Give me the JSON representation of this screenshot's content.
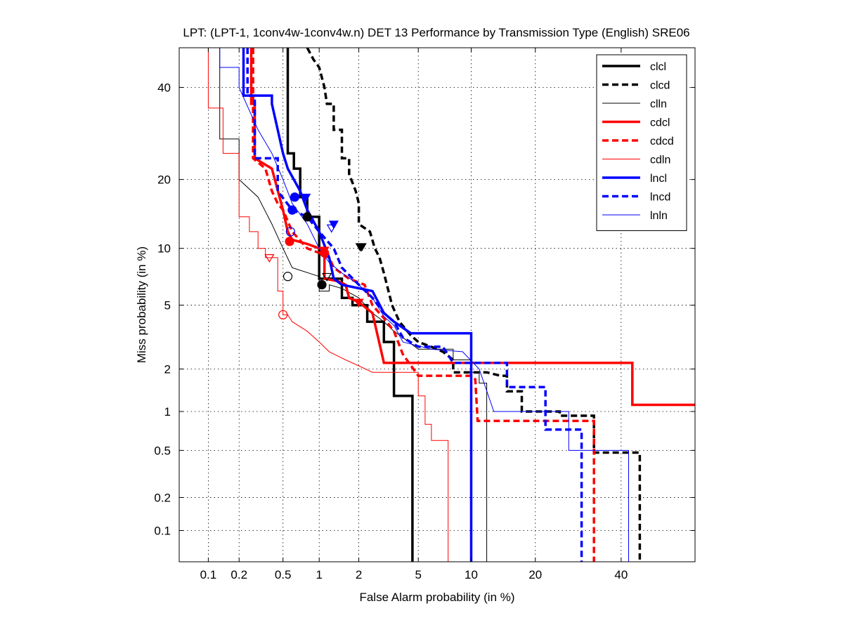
{
  "chart_data": {
    "type": "line",
    "title": "LPT: (LPT-1, 1conv4w-1conv4w.n) DET 13 Performance by Transmission Type (English) SRE06",
    "xlabel": "False Alarm probability (in %)",
    "ylabel": "Miss probability (in %)",
    "x_scale": "probit",
    "y_scale": "probit",
    "xlim": [
      0.05,
      60
    ],
    "ylim": [
      0.05,
      50
    ],
    "x_ticks": [
      0.1,
      0.2,
      0.5,
      1,
      2,
      5,
      10,
      20,
      40
    ],
    "x_tick_labels": [
      "0.1",
      "0.2",
      "0.5",
      "1",
      "2",
      "5",
      "10",
      "20",
      "40"
    ],
    "y_ticks": [
      0.1,
      0.2,
      0.5,
      1,
      2,
      5,
      10,
      20,
      40
    ],
    "y_tick_labels": [
      "0.1",
      "0.2",
      "0.5",
      "1",
      "2",
      "5",
      "10",
      "20",
      "40"
    ],
    "grid": true,
    "legend_position": "top-right",
    "series": [
      {
        "name": "clcl",
        "color": "#000000",
        "style": "solid",
        "weight": "thick",
        "points": [
          [
            0.55,
            50
          ],
          [
            0.55,
            25
          ],
          [
            0.62,
            25
          ],
          [
            0.62,
            22
          ],
          [
            0.7,
            22
          ],
          [
            0.7,
            17
          ],
          [
            0.8,
            17
          ],
          [
            0.8,
            14
          ],
          [
            1,
            14
          ],
          [
            1,
            7
          ],
          [
            1.5,
            7
          ],
          [
            1.5,
            5.5
          ],
          [
            1.8,
            5.5
          ],
          [
            1.8,
            5
          ],
          [
            2.3,
            5
          ],
          [
            2.3,
            4
          ],
          [
            3,
            4
          ],
          [
            3,
            3
          ],
          [
            3.5,
            3
          ],
          [
            3.5,
            1.3
          ],
          [
            4.6,
            1.3
          ],
          [
            4.6,
            0.05
          ]
        ],
        "markers": [
          {
            "x": 0.8,
            "y": 14,
            "shape": "circle"
          },
          {
            "x": 1.05,
            "y": 6.5,
            "shape": "circle"
          },
          {
            "x": 2.05,
            "y": 10.2,
            "shape": "triangle-down"
          }
        ]
      },
      {
        "name": "clcd",
        "color": "#000000",
        "style": "dashed",
        "weight": "thick",
        "points": [
          [
            0.8,
            50
          ],
          [
            0.9,
            47
          ],
          [
            1.0,
            45
          ],
          [
            1.1,
            40
          ],
          [
            1.15,
            36
          ],
          [
            1.3,
            36
          ],
          [
            1.3,
            30
          ],
          [
            1.5,
            30
          ],
          [
            1.5,
            24
          ],
          [
            1.7,
            24
          ],
          [
            1.7,
            21
          ],
          [
            1.9,
            18
          ],
          [
            2,
            16
          ],
          [
            2,
            13
          ],
          [
            2.4,
            12
          ],
          [
            2.6,
            10
          ],
          [
            2.8,
            9
          ],
          [
            3,
            7.5
          ],
          [
            3.4,
            5
          ],
          [
            3.8,
            4
          ],
          [
            4.5,
            3.3
          ],
          [
            5,
            3
          ],
          [
            6,
            2.8
          ],
          [
            7,
            2.6
          ],
          [
            8,
            2.3
          ],
          [
            8,
            1.9
          ],
          [
            12,
            1.9
          ],
          [
            14,
            1.8
          ],
          [
            15,
            1.8
          ],
          [
            15,
            1.4
          ],
          [
            17.5,
            1.4
          ],
          [
            17.5,
            1.0
          ],
          [
            25,
            1.0
          ],
          [
            25,
            0.93
          ],
          [
            33,
            0.93
          ],
          [
            33,
            0.48
          ],
          [
            45,
            0.48
          ],
          [
            45,
            0.05
          ]
        ],
        "markers": [
          {
            "x": 2.1,
            "y": 10.2,
            "shape": "triangle-down"
          }
        ]
      },
      {
        "name": "clln",
        "color": "#000000",
        "style": "solid",
        "weight": "thin",
        "points": [
          [
            0.13,
            50
          ],
          [
            0.13,
            28
          ],
          [
            0.2,
            28
          ],
          [
            0.2,
            20
          ],
          [
            0.3,
            17
          ],
          [
            0.4,
            13
          ],
          [
            0.5,
            10
          ],
          [
            0.6,
            8
          ],
          [
            1,
            7.2
          ],
          [
            1,
            6
          ],
          [
            1.2,
            6
          ],
          [
            1.2,
            6.5
          ],
          [
            1.5,
            6.2
          ],
          [
            2,
            5.5
          ],
          [
            2.5,
            4.5
          ],
          [
            3,
            4
          ],
          [
            3.5,
            3.5
          ],
          [
            4,
            3.2
          ],
          [
            5,
            2.7
          ],
          [
            8,
            2.7
          ],
          [
            8,
            2.3
          ],
          [
            10,
            2.3
          ],
          [
            10,
            1.9
          ],
          [
            11,
            1.9
          ],
          [
            11,
            1.6
          ],
          [
            12,
            1.6
          ],
          [
            12,
            0.05
          ]
        ],
        "markers": [
          {
            "x": 0.55,
            "y": 7.2,
            "shape": "circle"
          },
          {
            "x": 1.15,
            "y": 7.2,
            "shape": "triangle-down"
          }
        ]
      },
      {
        "name": "cdcl",
        "color": "#ff0000",
        "style": "solid",
        "weight": "thick",
        "points": [
          [
            0.26,
            50
          ],
          [
            0.26,
            36
          ],
          [
            0.28,
            36
          ],
          [
            0.28,
            24
          ],
          [
            0.4,
            22
          ],
          [
            0.5,
            15
          ],
          [
            0.55,
            12
          ],
          [
            0.6,
            11
          ],
          [
            0.8,
            10.5
          ],
          [
            1,
            10
          ],
          [
            1.1,
            10
          ],
          [
            1.1,
            7
          ],
          [
            1.4,
            6.8
          ],
          [
            1.6,
            6.5
          ],
          [
            1.7,
            5.5
          ],
          [
            2,
            5.2
          ],
          [
            2.5,
            4.5
          ],
          [
            3,
            2.2
          ],
          [
            4,
            2.2
          ],
          [
            43,
            2.2
          ],
          [
            43,
            1.12
          ],
          [
            60,
            1.12
          ]
        ],
        "markers": [
          {
            "x": 0.57,
            "y": 10.8,
            "shape": "circle"
          },
          {
            "x": 1.1,
            "y": 9.8,
            "shape": "triangle-down"
          }
        ]
      },
      {
        "name": "cdcd",
        "color": "#ff0000",
        "style": "dashed",
        "weight": "thick",
        "points": [
          [
            0.27,
            50
          ],
          [
            0.27,
            24
          ],
          [
            0.35,
            22
          ],
          [
            0.4,
            18
          ],
          [
            0.45,
            16
          ],
          [
            0.5,
            15
          ],
          [
            0.6,
            12
          ],
          [
            0.8,
            10
          ],
          [
            1.0,
            9.5
          ],
          [
            1.2,
            9
          ],
          [
            1.3,
            8
          ],
          [
            1.7,
            7
          ],
          [
            2.2,
            6.5
          ],
          [
            2.5,
            5
          ],
          [
            3,
            4.2
          ],
          [
            3.5,
            3.5
          ],
          [
            4,
            2.5
          ],
          [
            5,
            1.8
          ],
          [
            6,
            1.8
          ],
          [
            10,
            1.8
          ],
          [
            10.5,
            1.7
          ],
          [
            10.8,
            0.85
          ],
          [
            30,
            0.85
          ],
          [
            33,
            0.85
          ],
          [
            33,
            0.05
          ]
        ],
        "markers": [
          {
            "x": 1.1,
            "y": 9.5,
            "shape": "circle"
          },
          {
            "x": 2.0,
            "y": 5.2,
            "shape": "triangle-down"
          }
        ]
      },
      {
        "name": "cdln",
        "color": "#ff0000",
        "style": "solid",
        "weight": "thin",
        "points": [
          [
            0.1,
            50
          ],
          [
            0.1,
            35
          ],
          [
            0.14,
            35
          ],
          [
            0.14,
            25
          ],
          [
            0.2,
            25
          ],
          [
            0.2,
            14
          ],
          [
            0.25,
            14
          ],
          [
            0.25,
            12
          ],
          [
            0.3,
            12
          ],
          [
            0.3,
            10
          ],
          [
            0.35,
            10
          ],
          [
            0.35,
            9
          ],
          [
            0.45,
            9
          ],
          [
            0.45,
            6
          ],
          [
            0.5,
            6
          ],
          [
            0.5,
            4.4
          ],
          [
            0.55,
            4.4
          ],
          [
            0.6,
            4
          ],
          [
            0.8,
            3.5
          ],
          [
            1.0,
            3
          ],
          [
            1.2,
            2.6
          ],
          [
            1.6,
            2.3
          ],
          [
            2,
            2.1
          ],
          [
            2.5,
            1.9
          ],
          [
            5,
            1.9
          ],
          [
            5,
            1.3
          ],
          [
            5.5,
            1.3
          ],
          [
            5.5,
            0.8
          ],
          [
            6,
            0.8
          ],
          [
            6,
            0.6
          ],
          [
            7.5,
            0.6
          ],
          [
            7.5,
            0.05
          ]
        ],
        "markers": [
          {
            "x": 0.5,
            "y": 4.4,
            "shape": "circle"
          },
          {
            "x": 0.38,
            "y": 9.0,
            "shape": "triangle-down"
          }
        ]
      },
      {
        "name": "lncl",
        "color": "#0000ff",
        "style": "solid",
        "weight": "thick",
        "points": [
          [
            0.22,
            50
          ],
          [
            0.22,
            38
          ],
          [
            0.4,
            38
          ],
          [
            0.4,
            36
          ],
          [
            0.45,
            30
          ],
          [
            0.5,
            25
          ],
          [
            0.55,
            22
          ],
          [
            0.7,
            18
          ],
          [
            0.8,
            15
          ],
          [
            1,
            12
          ],
          [
            1.2,
            9
          ],
          [
            1.3,
            7
          ],
          [
            1.5,
            6.5
          ],
          [
            2.5,
            6
          ],
          [
            3,
            4.5
          ],
          [
            3.5,
            4
          ],
          [
            4.5,
            3.4
          ],
          [
            10,
            3.4
          ],
          [
            10,
            0.05
          ]
        ],
        "markers": [
          {
            "x": 0.63,
            "y": 17,
            "shape": "circle"
          },
          {
            "x": 0.78,
            "y": 17,
            "shape": "triangle-down"
          }
        ]
      },
      {
        "name": "lncd",
        "color": "#0000ff",
        "style": "dashed",
        "weight": "thick",
        "points": [
          [
            0.24,
            50
          ],
          [
            0.24,
            38
          ],
          [
            0.28,
            38
          ],
          [
            0.28,
            24
          ],
          [
            0.45,
            24
          ],
          [
            0.45,
            18
          ],
          [
            0.6,
            15
          ],
          [
            0.8,
            14
          ],
          [
            1.0,
            12
          ],
          [
            1.3,
            10
          ],
          [
            1.5,
            8
          ],
          [
            2,
            6.5
          ],
          [
            2.5,
            5.5
          ],
          [
            3,
            4.5
          ],
          [
            3.5,
            4
          ],
          [
            4,
            3.2
          ],
          [
            5,
            2.8
          ],
          [
            7,
            2.8
          ],
          [
            8,
            2.2
          ],
          [
            15,
            2.2
          ],
          [
            15,
            1.5
          ],
          [
            22,
            1.5
          ],
          [
            22,
            0.73
          ],
          [
            30,
            0.73
          ],
          [
            30,
            0.05
          ]
        ],
        "markers": [
          {
            "x": 0.6,
            "y": 15,
            "shape": "circle"
          },
          {
            "x": 1.3,
            "y": 13,
            "shape": "triangle-down"
          }
        ]
      },
      {
        "name": "lnln",
        "color": "#0000ff",
        "style": "solid",
        "weight": "thin",
        "points": [
          [
            0.13,
            50
          ],
          [
            0.13,
            45
          ],
          [
            0.2,
            45
          ],
          [
            0.2,
            40
          ],
          [
            0.3,
            30
          ],
          [
            0.4,
            25
          ],
          [
            0.5,
            20
          ],
          [
            0.6,
            16
          ],
          [
            0.8,
            13
          ],
          [
            1,
            10
          ],
          [
            1.2,
            8.5
          ],
          [
            1.5,
            7.5
          ],
          [
            2,
            6.5
          ],
          [
            2.5,
            5.5
          ],
          [
            3,
            4.3
          ],
          [
            3.5,
            3.8
          ],
          [
            4,
            3
          ],
          [
            6,
            2.7
          ],
          [
            9,
            2.6
          ],
          [
            11,
            2.0
          ],
          [
            13,
            1.0
          ],
          [
            27,
            1.0
          ],
          [
            27,
            0.5
          ],
          [
            42,
            0.5
          ],
          [
            42,
            0.05
          ]
        ],
        "markers": [
          {
            "x": 0.58,
            "y": 12,
            "shape": "circle"
          },
          {
            "x": 1.25,
            "y": 12.5,
            "shape": "triangle-down"
          }
        ]
      }
    ]
  }
}
